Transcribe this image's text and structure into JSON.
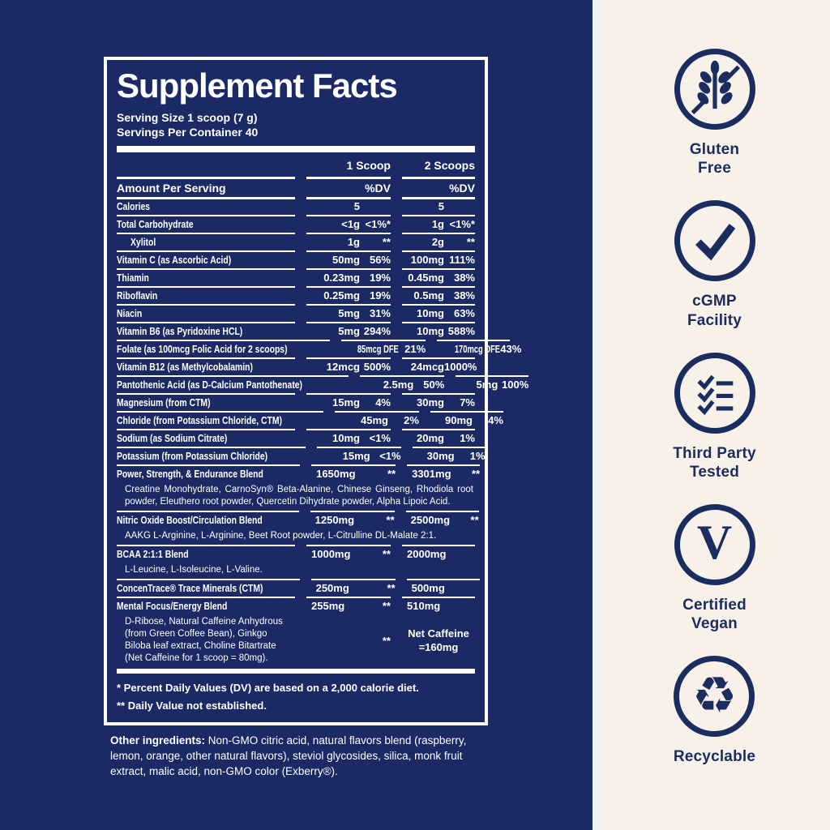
{
  "panel": {
    "title": "Supplement Facts",
    "serving_size": "Serving Size 1 scoop (7 g)",
    "servings_per_container": "Servings Per Container 40",
    "col_headers": {
      "scoop1": "1 Scoop",
      "scoop2": "2 Scoops"
    },
    "amount_header": {
      "label": "Amount Per Serving",
      "dv1": "%DV",
      "dv2": "%DV"
    },
    "rows": [
      {
        "label": "Calories",
        "v1": "5",
        "d1": "",
        "v2": "5",
        "d2": ""
      },
      {
        "label": "Total Carbohydrate",
        "v1": "<1g",
        "d1": "<1%*",
        "v2": "1g",
        "d2": "<1%*"
      },
      {
        "label": "Xylitol",
        "indent": true,
        "v1": "1g",
        "d1": "**",
        "v2": "2g",
        "d2": "**"
      },
      {
        "label": "Vitamin C (as Ascorbic Acid)",
        "v1": "50mg",
        "d1": "56%",
        "v2": "100mg",
        "d2": "111%"
      },
      {
        "label": "Thiamin",
        "v1": "0.23mg",
        "d1": "19%",
        "v2": "0.45mg",
        "d2": "38%"
      },
      {
        "label": "Riboflavin",
        "v1": "0.25mg",
        "d1": "19%",
        "v2": "0.5mg",
        "d2": "38%"
      },
      {
        "label": "Niacin",
        "v1": "5mg",
        "d1": "31%",
        "v2": "10mg",
        "d2": "63%"
      },
      {
        "label": "Vitamin B6 (as Pyridoxine HCL)",
        "v1": "5mg",
        "d1": "294%",
        "v2": "10mg",
        "d2": "588%"
      },
      {
        "label": "Folate (as 100mcg Folic Acid for 2 scoops)",
        "v1": "85mcg DFE",
        "d1": "21%",
        "v2": "170mcg DFE",
        "d2": "43%"
      },
      {
        "label": "Vitamin B12 (as Methylcobalamin)",
        "v1": "12mcg",
        "d1": "500%",
        "v2": "24mcg",
        "d2": "1000%"
      },
      {
        "label": "Pantothenic Acid (as D-Calcium Pantothenate)",
        "v1": "2.5mg",
        "d1": "50%",
        "v2": "5mg",
        "d2": "100%"
      },
      {
        "label": "Magnesium (from CTM)",
        "v1": "15mg",
        "d1": "4%",
        "v2": "30mg",
        "d2": "7%"
      },
      {
        "label": "Chloride (from Potassium Chloride, CTM)",
        "v1": "45mg",
        "d1": "2%",
        "v2": "90mg",
        "d2": "4%"
      },
      {
        "label": "Sodium (as Sodium Citrate)",
        "v1": "10mg",
        "d1": "<1%",
        "v2": "20mg",
        "d2": "1%"
      },
      {
        "label": "Potassium (from Potassium Chloride)",
        "v1": "15mg",
        "d1": "<1%",
        "v2": "30mg",
        "d2": "1%"
      }
    ],
    "blends": [
      {
        "label": "Power, Strength, & Endurance Blend",
        "v1": "1650mg",
        "d1": "**",
        "v2": "3301mg",
        "d2": "**",
        "sub": "Creatine Monohydrate, CarnoSyn® Beta-Alanine, Chinese Ginseng, Rhodiola root powder, Eleuthero root powder, Quercetin Dihydrate powder, Alpha Lipoic Acid."
      },
      {
        "label": "Nitric Oxide Boost/Circulation Blend",
        "v1": "1250mg",
        "d1": "**",
        "v2": "2500mg",
        "d2": "**",
        "sub": "AAKG L-Arginine, L-Arginine, Beet Root powder, L-Citrulline DL-Malate 2:1."
      },
      {
        "label": "BCAA 2:1:1 Blend",
        "v1": "1000mg",
        "d1": "**",
        "v2": "2000mg",
        "d2": "",
        "sub": "L-Leucine, L-Isoleucine, L-Valine."
      },
      {
        "label": "ConcenTrace® Trace Minerals (CTM)",
        "v1": "250mg",
        "d1": "**",
        "v2": "500mg",
        "d2": "",
        "sub": ""
      },
      {
        "label": "Mental Focus/Energy Blend",
        "v1": "255mg",
        "d1": "**",
        "v2": "510mg",
        "d2": "",
        "sub": "",
        "note": {
          "sub": "D-Ribose, Natural Caffeine Anhydrous (from Green Coffee Bean), Ginkgo Biloba leaf extract, Choline Bitartrate (Net Caffeine for 1 scoop = 80mg).",
          "d1": "**",
          "v2": "Net Caffeine\n=160mg"
        }
      }
    ],
    "footnotes": [
      "* Percent Daily Values (DV) are based on a 2,000 calorie diet.",
      "** Daily Value not established."
    ]
  },
  "other_ingredients": {
    "bold": "Other ingredients:",
    "text": " Non-GMO citric acid, natural flavors blend (raspberry, lemon, orange, other natural flavors), steviol glycosides, silica, monk fruit extract, malic acid, non-GMO color (Exberry®)."
  },
  "badges": [
    {
      "id": "gluten-free",
      "icon_name": "wheat-slash-icon",
      "svg": "wheat",
      "label": "Gluten\nFree"
    },
    {
      "id": "cgmp-facility",
      "icon_name": "checkmark-icon",
      "svg": "check",
      "label": "cGMP\nFacility"
    },
    {
      "id": "third-party-tested",
      "icon_name": "checklist-icon",
      "svg": "checklist",
      "label": "Third Party\nTested"
    },
    {
      "id": "certified-vegan",
      "icon_name": "vegan-v-icon",
      "glyph": "V",
      "glyph_style": "serif",
      "label": "Certified\nVegan"
    },
    {
      "id": "recyclable",
      "icon_name": "recycle-icon",
      "glyph": "♻",
      "glyph_style": "recycle",
      "label": "Recyclable"
    }
  ],
  "colors": {
    "background_navy": "#1b2a64",
    "panel_border": "#ffffff",
    "panel_text": "#ffffff",
    "sidebar_cream": "#f7f1e9",
    "badge_navy": "#1b2c5f",
    "divider_strip": "#f2f3f5"
  }
}
